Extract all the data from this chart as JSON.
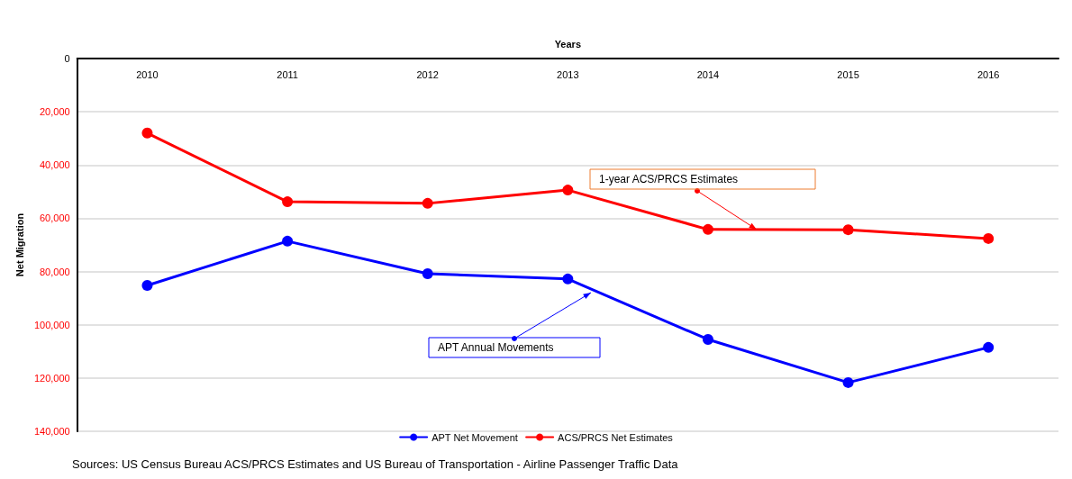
{
  "chart_data": {
    "type": "line",
    "xlabel": "Years",
    "ylabel": "Net Migration",
    "categories": [
      "2010",
      "2011",
      "2012",
      "2013",
      "2014",
      "2015",
      "2016"
    ],
    "series": [
      {
        "name": "APT Net Movement",
        "color": "#0000ff",
        "values": [
          85200,
          68600,
          80800,
          82800,
          105500,
          121700,
          108500
        ]
      },
      {
        "name": "ACS/PRCS Net Estimates",
        "color": "#ff0000",
        "values": [
          28000,
          53800,
          54400,
          49400,
          64200,
          64300,
          67600
        ]
      }
    ],
    "ylim": [
      140000,
      0
    ],
    "yticks": [
      0,
      {
        "value": 20000,
        "label": "20,000"
      },
      {
        "value": 40000,
        "label": "40,000"
      },
      {
        "value": 60000,
        "label": "60,000"
      },
      {
        "value": 80000,
        "label": "80,000"
      },
      {
        "value": 100000,
        "label": "100,000"
      },
      {
        "value": 120000,
        "label": "120,000"
      },
      {
        "value": 140000,
        "label": "140,000"
      }
    ],
    "grid": "y",
    "legend": "bottom",
    "marker": "circle",
    "line_style": "solid",
    "annotations": [
      "1-year ACS/PRCS Estimates",
      "APT Annual Movements",
      "Sources: US Census Bureau ACS/PRCS Estimates and US Bureau of Transportation - Airline Passenger Traffic Data"
    ]
  }
}
